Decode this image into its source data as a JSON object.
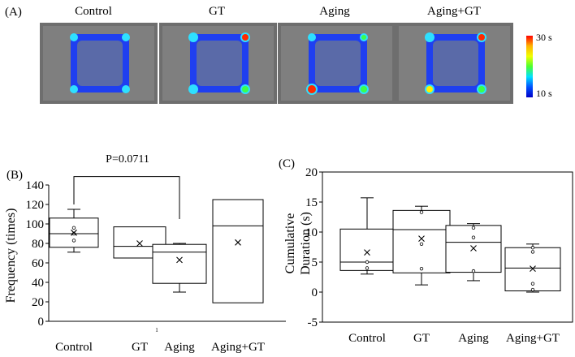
{
  "panel_a": {
    "label": "(A)",
    "groups": [
      "Control",
      "GT",
      "Aging",
      "Aging+GT"
    ],
    "heatmap_colors": [
      "#0a1a9c",
      "#1f3ff0",
      "#2ee0ff",
      "#3cff4a",
      "#fff200",
      "#ff2a00"
    ],
    "colorbar": {
      "max_label": "30 s",
      "min_label": "10 s",
      "colors": [
        "#ff0000",
        "#ffb400",
        "#f0ff00",
        "#4cff30",
        "#00e0ff",
        "#0050ff",
        "#0000c8"
      ]
    }
  },
  "chart_data": [
    {
      "type": "box",
      "panel_label": "(B)",
      "ylabel": "Frequency (times)",
      "categories": [
        "Control",
        "GT",
        "Aging",
        "Aging+GT"
      ],
      "ylim": [
        0,
        140
      ],
      "yticks": [
        0,
        20,
        40,
        60,
        80,
        100,
        120,
        140
      ],
      "stray_label": "1",
      "boxes": [
        {
          "whisker_low": 71,
          "q1": 76,
          "median": 90,
          "q3": 106,
          "whisker_high": 115,
          "mean": 91,
          "points": [
            96,
            90,
            83
          ]
        },
        {
          "whisker_low": null,
          "q1": 65,
          "median": 77,
          "q3": 97,
          "whisker_high": null,
          "mean": 80,
          "points": []
        },
        {
          "whisker_low": 30,
          "q1": 39,
          "median": 71,
          "q3": 79,
          "whisker_high": 80,
          "mean": 63,
          "points": []
        },
        {
          "whisker_low": null,
          "q1": 19,
          "median": 98,
          "q3": 125,
          "whisker_high": null,
          "mean": 81,
          "points": []
        }
      ],
      "annotation": {
        "text": "P=0.0711",
        "from": "Control",
        "to": "Aging",
        "bracket_y": 127,
        "drop_y": 115
      }
    },
    {
      "type": "box",
      "panel_label": "(C)",
      "ylabel_lines": [
        "Cumulative",
        "Duration (s)"
      ],
      "categories": [
        "Control",
        "GT",
        "Aging",
        "Aging+GT"
      ],
      "ylim": [
        -5,
        20
      ],
      "yticks": [
        -5,
        0,
        5,
        10,
        15,
        20
      ],
      "boxes": [
        {
          "whisker_low": 3.0,
          "q1": 3.6,
          "median": 5.0,
          "q3": 10.5,
          "whisker_high": 15.7,
          "mean": 6.6,
          "points": [
            5.0,
            4.0
          ]
        },
        {
          "whisker_low": 1.2,
          "q1": 3.2,
          "median": 10.4,
          "q3": 13.6,
          "whisker_high": 14.3,
          "mean": 8.9,
          "points": [
            13.3,
            8.0,
            3.9
          ]
        },
        {
          "whisker_low": 1.9,
          "q1": 3.3,
          "median": 8.3,
          "q3": 11.1,
          "whisker_high": 11.4,
          "mean": 7.3,
          "points": [
            10.7,
            9.1,
            3.5
          ]
        },
        {
          "whisker_low": 0.0,
          "q1": 0.2,
          "median": 4.0,
          "q3": 7.4,
          "whisker_high": 8.0,
          "mean": 3.9,
          "points": [
            7.4,
            6.7,
            1.4,
            0.4
          ]
        }
      ]
    }
  ]
}
